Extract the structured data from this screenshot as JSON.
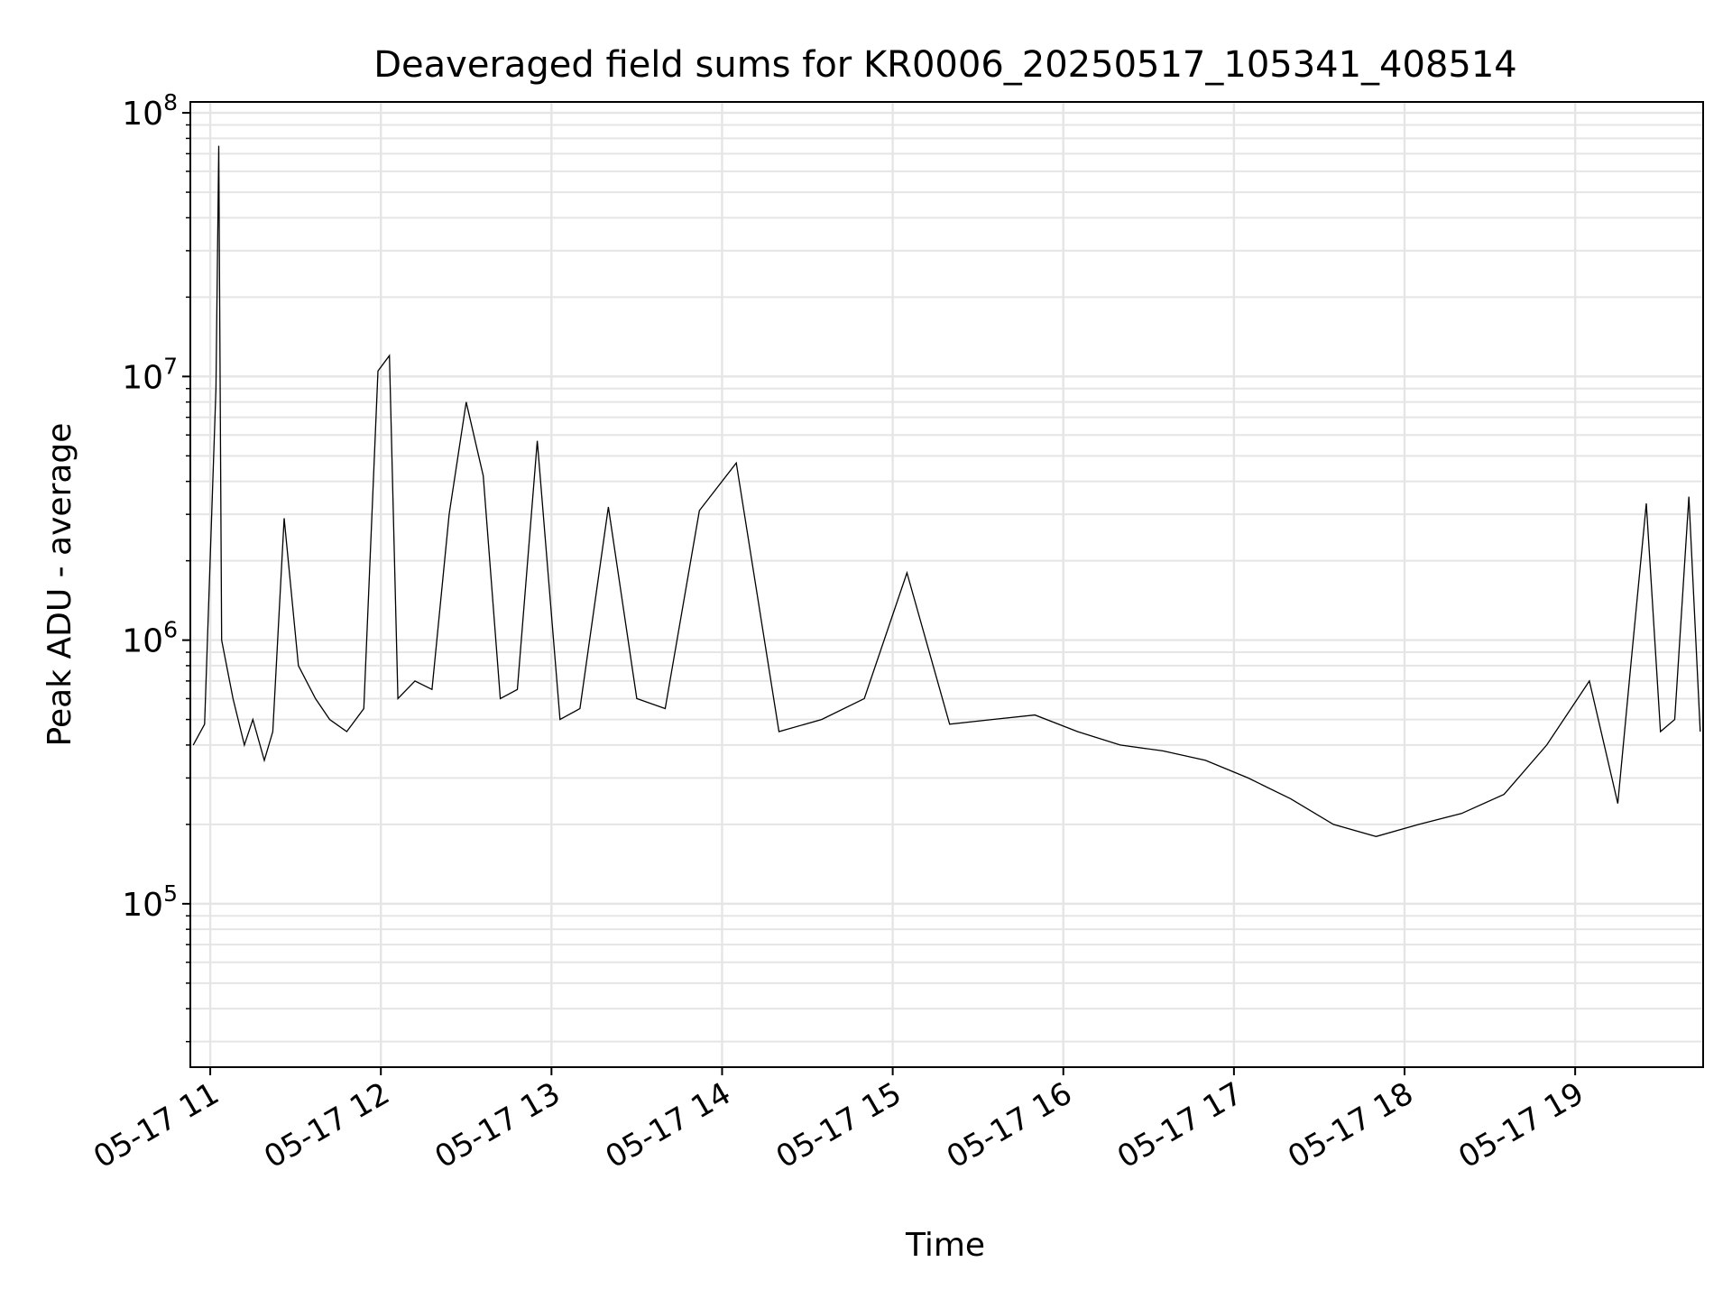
{
  "chart_data": {
    "type": "line",
    "title": "Deaveraged field sums for KR0006_20250517_105341_408514",
    "xlabel": "Time",
    "ylabel": "Peak ADU - average",
    "x_tick_labels": [
      "05-17 11",
      "05-17 12",
      "05-17 13",
      "05-17 14",
      "05-17 15",
      "05-17 16",
      "05-17 17",
      "05-17 18",
      "05-17 19"
    ],
    "x_tick_times": [
      "2025-05-17T11:00",
      "2025-05-17T12:00",
      "2025-05-17T13:00",
      "2025-05-17T14:00",
      "2025-05-17T15:00",
      "2025-05-17T16:00",
      "2025-05-17T17:00",
      "2025-05-17T18:00",
      "2025-05-17T19:00"
    ],
    "xlim": [
      "2025-05-17T10:53",
      "2025-05-17T19:45"
    ],
    "y_scale": "log",
    "ylim": [
      24000,
      110000000
    ],
    "y_tick_labels": [
      {
        "value": 100000,
        "base": "10",
        "exp": "5"
      },
      {
        "value": 1000000,
        "base": "10",
        "exp": "6"
      },
      {
        "value": 10000000,
        "base": "10",
        "exp": "7"
      },
      {
        "value": 100000000,
        "base": "10",
        "exp": "8"
      }
    ],
    "grid": true,
    "line_color": "#000000",
    "grid_color": "#e5e5e5",
    "series": [
      {
        "x": [
          "2025-05-17T10:54",
          "2025-05-17T10:58",
          "2025-05-17T11:02",
          "2025-05-17T11:03",
          "2025-05-17T11:04",
          "2025-05-17T11:08",
          "2025-05-17T11:12",
          "2025-05-17T11:15",
          "2025-05-17T11:19",
          "2025-05-17T11:22",
          "2025-05-17T11:26",
          "2025-05-17T11:31",
          "2025-05-17T11:37",
          "2025-05-17T11:42",
          "2025-05-17T11:48",
          "2025-05-17T11:54",
          "2025-05-17T11:59",
          "2025-05-17T12:03",
          "2025-05-17T12:06",
          "2025-05-17T12:12",
          "2025-05-17T12:18",
          "2025-05-17T12:24",
          "2025-05-17T12:30",
          "2025-05-17T12:36",
          "2025-05-17T12:42",
          "2025-05-17T12:48",
          "2025-05-17T12:55",
          "2025-05-17T13:03",
          "2025-05-17T13:10",
          "2025-05-17T13:20",
          "2025-05-17T13:30",
          "2025-05-17T13:40",
          "2025-05-17T13:52",
          "2025-05-17T14:05",
          "2025-05-17T14:20",
          "2025-05-17T14:35",
          "2025-05-17T14:50",
          "2025-05-17T15:05",
          "2025-05-17T15:20",
          "2025-05-17T15:35",
          "2025-05-17T15:50",
          "2025-05-17T16:05",
          "2025-05-17T16:20",
          "2025-05-17T16:35",
          "2025-05-17T16:50",
          "2025-05-17T17:05",
          "2025-05-17T17:20",
          "2025-05-17T17:35",
          "2025-05-17T17:50",
          "2025-05-17T18:05",
          "2025-05-17T18:20",
          "2025-05-17T18:35",
          "2025-05-17T18:50",
          "2025-05-17T19:05",
          "2025-05-17T19:15",
          "2025-05-17T19:20",
          "2025-05-17T19:25",
          "2025-05-17T19:30",
          "2025-05-17T19:35",
          "2025-05-17T19:40",
          "2025-05-17T19:44"
        ],
        "values": [
          400000,
          480000,
          9000000,
          75000000,
          1000000,
          600000,
          400000,
          500000,
          350000,
          450000,
          2900000,
          800000,
          600000,
          500000,
          450000,
          550000,
          10500000,
          12000000,
          600000,
          700000,
          650000,
          3000000,
          8000000,
          4200000,
          600000,
          650000,
          5700000,
          500000,
          550000,
          3200000,
          600000,
          550000,
          3100000,
          4700000,
          450000,
          500000,
          600000,
          1800000,
          480000,
          500000,
          520000,
          450000,
          400000,
          380000,
          350000,
          300000,
          250000,
          200000,
          180000,
          200000,
          220000,
          260000,
          400000,
          700000,
          240000,
          900000,
          3300000,
          450000,
          500000,
          3500000,
          450000
        ]
      }
    ]
  }
}
